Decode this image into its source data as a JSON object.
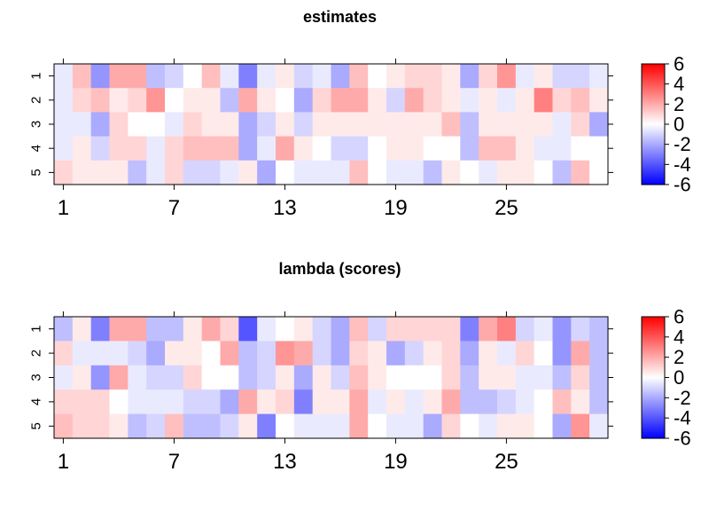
{
  "chart_data": [
    {
      "type": "heatmap",
      "title": "estimates",
      "n_cols": 30,
      "row_labels": [
        "1",
        "2",
        "3",
        "4",
        "5"
      ],
      "x_tick_labels": [
        "1",
        "7",
        "13",
        "19",
        "25"
      ],
      "x_tick_positions": [
        1,
        7,
        13,
        19,
        25
      ],
      "colorbar": {
        "range": [
          -6,
          6
        ],
        "tick_labels": [
          "6",
          "4",
          "2",
          "0",
          "-2",
          "-4",
          "-6"
        ],
        "tick_values": [
          6,
          4,
          2,
          0,
          -2,
          -4,
          -6
        ],
        "colors": {
          "low": "#0000ff",
          "mid": "#ffffff",
          "high": "#ff0000"
        }
      },
      "values": [
        [
          -0.5,
          1.5,
          -2.5,
          2.0,
          2.0,
          -1.5,
          -1.0,
          0.0,
          1.5,
          -0.5,
          -3.0,
          -0.5,
          0.5,
          -1.0,
          -0.5,
          -2.0,
          1.5,
          0.0,
          0.5,
          1.0,
          1.0,
          0.5,
          -2.0,
          1.0,
          2.5,
          -0.5,
          0.5,
          -1.0,
          -1.0,
          -0.5
        ],
        [
          -0.5,
          1.0,
          1.5,
          0.5,
          1.0,
          2.5,
          0.0,
          0.5,
          0.5,
          -1.5,
          2.0,
          0.5,
          0.0,
          -2.0,
          1.0,
          2.0,
          2.0,
          0.5,
          -1.0,
          2.0,
          1.0,
          0.5,
          -0.5,
          0.5,
          -0.5,
          0.5,
          3.0,
          1.0,
          1.5,
          0.5
        ],
        [
          -0.5,
          -0.5,
          -2.0,
          1.0,
          0.0,
          0.0,
          -0.5,
          1.0,
          0.5,
          0.5,
          -2.0,
          -1.0,
          0.5,
          -1.0,
          0.5,
          0.5,
          0.5,
          0.5,
          0.5,
          0.5,
          0.5,
          1.5,
          -1.5,
          0.5,
          0.5,
          0.5,
          0.5,
          -0.5,
          1.0,
          -2.0
        ],
        [
          -0.5,
          0.5,
          -1.0,
          1.0,
          1.0,
          -0.5,
          1.0,
          1.5,
          1.5,
          1.5,
          -2.0,
          -0.5,
          2.0,
          0.5,
          0.0,
          -1.0,
          -1.0,
          0.0,
          0.5,
          0.5,
          0.0,
          0.0,
          -1.5,
          1.5,
          1.5,
          0.5,
          -0.5,
          -0.5,
          0.0,
          0.0
        ],
        [
          1.0,
          0.5,
          0.5,
          0.5,
          -1.5,
          -0.5,
          1.0,
          -1.0,
          -1.0,
          -0.5,
          0.5,
          -2.0,
          0.0,
          -0.5,
          -0.5,
          -0.5,
          1.5,
          0.0,
          -0.5,
          -0.5,
          -1.5,
          0.5,
          0.0,
          -0.5,
          0.5,
          0.5,
          0.0,
          -1.5,
          1.5,
          0.0
        ]
      ]
    },
    {
      "type": "heatmap",
      "title": "lambda (scores)",
      "n_cols": 30,
      "row_labels": [
        "1",
        "2",
        "3",
        "4",
        "5"
      ],
      "x_tick_labels": [
        "1",
        "7",
        "13",
        "19",
        "25"
      ],
      "x_tick_positions": [
        1,
        7,
        13,
        19,
        25
      ],
      "colorbar": {
        "range": [
          -6,
          6
        ],
        "tick_labels": [
          "6",
          "4",
          "2",
          "0",
          "-2",
          "-4",
          "-6"
        ],
        "tick_values": [
          6,
          4,
          2,
          0,
          -2,
          -4,
          -6
        ],
        "colors": {
          "low": "#0000ff",
          "mid": "#ffffff",
          "high": "#ff0000"
        }
      },
      "values": [
        [
          -1.5,
          0.5,
          -3.0,
          2.0,
          2.0,
          -1.5,
          -1.5,
          0.5,
          2.0,
          1.0,
          -4.0,
          -0.5,
          0.0,
          0.5,
          -1.0,
          -2.0,
          1.5,
          -1.0,
          1.0,
          1.0,
          1.0,
          1.0,
          -3.0,
          2.0,
          3.0,
          -1.0,
          -0.5,
          -2.5,
          -1.0,
          -1.5
        ],
        [
          1.0,
          -0.5,
          -0.5,
          -0.5,
          -1.0,
          -2.0,
          0.5,
          0.5,
          0.0,
          2.0,
          -1.5,
          -1.0,
          2.5,
          2.0,
          -1.0,
          -2.0,
          1.0,
          0.5,
          -2.0,
          -1.0,
          0.5,
          1.0,
          -2.0,
          0.5,
          -0.5,
          1.0,
          0.0,
          -2.5,
          2.0,
          -1.5
        ],
        [
          -0.5,
          0.5,
          -2.5,
          2.0,
          -0.5,
          -1.0,
          -1.0,
          1.0,
          0.0,
          0.0,
          -1.5,
          -1.0,
          0.5,
          -2.0,
          0.5,
          -1.0,
          1.5,
          0.5,
          0.0,
          0.0,
          0.0,
          1.0,
          -1.5,
          0.5,
          0.5,
          -0.5,
          -0.5,
          -1.5,
          1.0,
          -1.5
        ],
        [
          1.0,
          1.0,
          1.0,
          0.0,
          -0.5,
          -0.5,
          -0.5,
          -1.0,
          -1.0,
          -2.0,
          2.0,
          0.5,
          1.0,
          -3.0,
          0.5,
          0.5,
          2.0,
          -0.5,
          0.5,
          -0.5,
          0.5,
          2.0,
          -1.5,
          -1.5,
          -1.0,
          -0.5,
          0.0,
          1.5,
          0.5,
          -1.5
        ],
        [
          1.5,
          1.0,
          1.0,
          0.5,
          -1.5,
          -1.0,
          1.5,
          -1.5,
          -1.5,
          -1.0,
          0.5,
          -3.0,
          0.0,
          -0.5,
          -0.5,
          -0.5,
          2.0,
          0.0,
          -0.5,
          -0.5,
          -2.0,
          1.0,
          0.0,
          -0.5,
          0.5,
          0.5,
          0.0,
          -2.0,
          2.5,
          -0.5
        ]
      ]
    }
  ]
}
